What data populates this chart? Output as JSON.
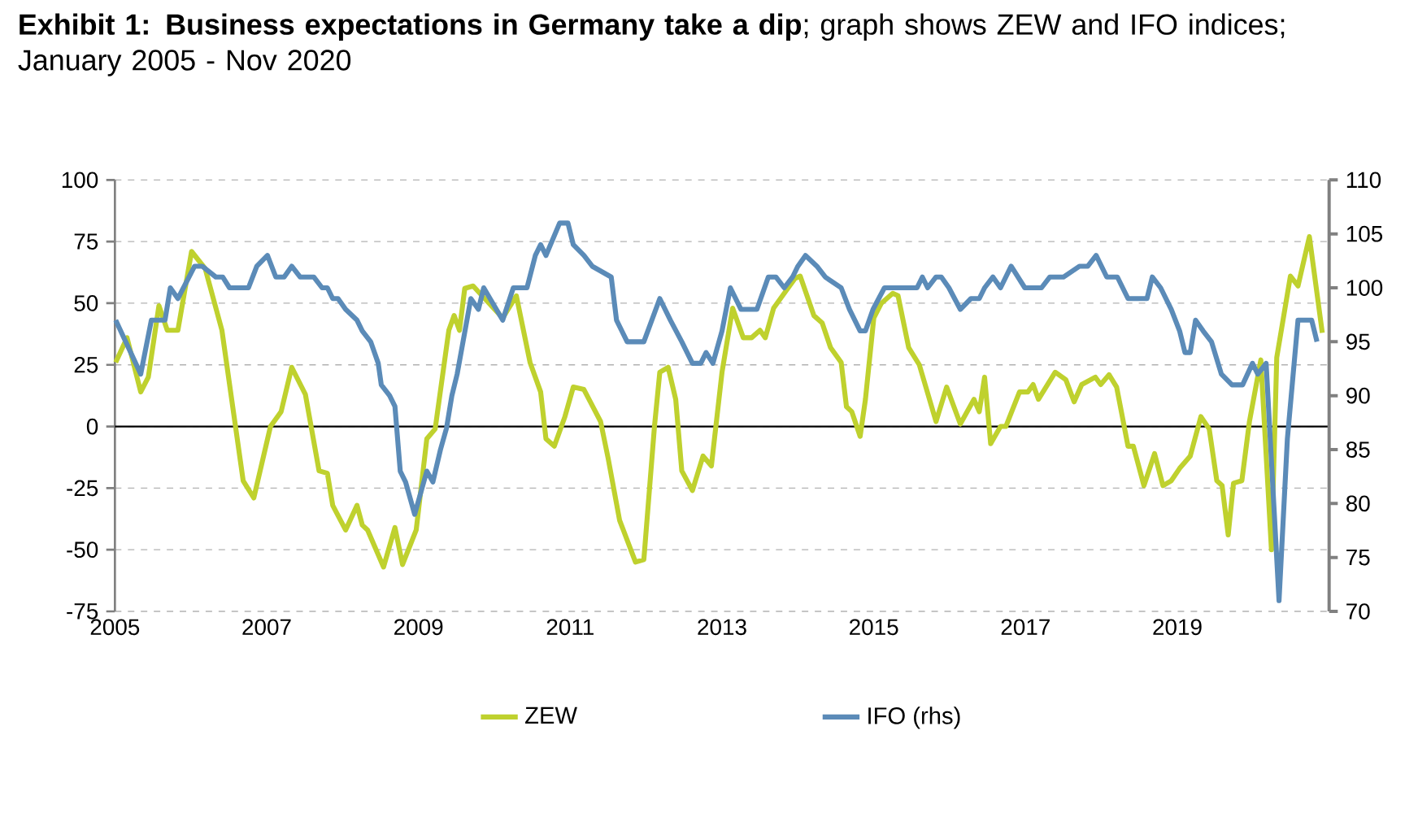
{
  "chart_data": {
    "type": "line",
    "title": "**Exhibit 1: Business expectations in Germany take a dip**; graph shows ZEW and IFO indices; January 2005 - Nov 2020",
    "xlim": [
      2005,
      2021
    ],
    "xticks": [
      2005,
      2007,
      2009,
      2011,
      2013,
      2015,
      2017,
      2019
    ],
    "ylim": [
      -75,
      100
    ],
    "yticks": [
      -75,
      -50,
      -25,
      0,
      25,
      50,
      75,
      100
    ],
    "y2lim": [
      70,
      110
    ],
    "y2ticks": [
      70,
      75,
      80,
      85,
      90,
      95,
      100,
      105,
      110
    ],
    "grid": "y",
    "legend": "bottom",
    "marker": "none",
    "line_style": "solid",
    "series": [
      {
        "name": "ZEW",
        "color": "#bfd12e",
        "x": [
          2005.01,
          2005.16,
          2005.34,
          2005.44,
          2005.58,
          2005.69,
          2005.83,
          2006.01,
          2006.19,
          2006.41,
          2006.69,
          2006.83,
          2007.05,
          2007.19,
          2007.33,
          2007.51,
          2007.69,
          2007.8,
          2007.87,
          2008.04,
          2008.19,
          2008.26,
          2008.33,
          2008.54,
          2008.69,
          2008.79,
          2008.97,
          2009.11,
          2009.22,
          2009.4,
          2009.47,
          2009.54,
          2009.61,
          2009.72,
          2010.11,
          2010.29,
          2010.47,
          2010.61,
          2010.68,
          2010.79,
          2010.93,
          2011.04,
          2011.18,
          2011.4,
          2011.5,
          2011.65,
          2011.86,
          2011.97,
          2012.11,
          2012.18,
          2012.29,
          2012.39,
          2012.47,
          2012.61,
          2012.75,
          2012.86,
          2013.0,
          2013.14,
          2013.28,
          2013.39,
          2013.5,
          2013.57,
          2013.68,
          2013.82,
          2013.96,
          2014.03,
          2014.21,
          2014.32,
          2014.43,
          2014.57,
          2014.64,
          2014.71,
          2014.82,
          2014.89,
          2015.0,
          2015.1,
          2015.25,
          2015.32,
          2015.46,
          2015.6,
          2015.82,
          2015.96,
          2016.14,
          2016.32,
          2016.39,
          2016.46,
          2016.54,
          2016.67,
          2016.74,
          2016.92,
          2017.03,
          2017.1,
          2017.17,
          2017.39,
          2017.53,
          2017.64,
          2017.74,
          2017.92,
          2017.99,
          2018.1,
          2018.2,
          2018.35,
          2018.42,
          2018.56,
          2018.7,
          2018.81,
          2018.92,
          2019.03,
          2019.17,
          2019.31,
          2019.42,
          2019.52,
          2019.59,
          2019.67,
          2019.74,
          2019.85,
          2019.95,
          2020.1,
          2020.24,
          2020.31,
          2020.49,
          2020.59,
          2020.74,
          2020.91
        ],
        "values": [
          26,
          36,
          14,
          20,
          49,
          39,
          39,
          71,
          64,
          39,
          -22,
          -29,
          0,
          6,
          24,
          13,
          -18,
          -19,
          -32,
          -42,
          -32,
          -40,
          -42,
          -57,
          -41,
          -56,
          -42,
          -5,
          -1,
          39,
          45,
          39,
          56,
          57,
          44,
          53,
          26,
          14,
          -5,
          -8,
          4,
          16,
          15,
          2,
          -13,
          -38,
          -55,
          -54,
          0,
          22,
          24,
          11,
          -18,
          -26,
          -12,
          -16,
          22,
          48,
          36,
          36,
          39,
          36,
          48,
          54,
          60,
          61,
          45,
          42,
          32,
          26,
          8,
          6,
          -4,
          11,
          44,
          50,
          54,
          53,
          32,
          25,
          2,
          16,
          1,
          11,
          6,
          20,
          -7,
          0,
          0,
          14,
          14,
          17,
          11,
          22,
          19,
          10,
          17,
          20,
          17,
          21,
          16,
          -8,
          -8,
          -24,
          -11,
          -24,
          -22,
          -17,
          -12,
          4,
          -1,
          -22,
          -24,
          -44,
          -23,
          -22,
          2,
          27,
          -50,
          28,
          61,
          57,
          77,
          38
        ]
      },
      {
        "name": "IFO  (rhs)",
        "color": "#5b8bb8",
        "axis": "y2",
        "x": [
          2005.01,
          2005.34,
          2005.48,
          2005.66,
          2005.73,
          2005.83,
          2006.05,
          2006.15,
          2006.33,
          2006.42,
          2006.51,
          2006.76,
          2006.87,
          2007.01,
          2007.12,
          2007.23,
          2007.33,
          2007.44,
          2007.62,
          2007.73,
          2007.8,
          2007.87,
          2007.94,
          2008.04,
          2008.19,
          2008.26,
          2008.37,
          2008.47,
          2008.51,
          2008.62,
          2008.69,
          2008.76,
          2008.83,
          2008.95,
          2009.11,
          2009.19,
          2009.29,
          2009.37,
          2009.44,
          2009.51,
          2009.69,
          2009.79,
          2009.86,
          2010.11,
          2010.25,
          2010.43,
          2010.54,
          2010.61,
          2010.68,
          2010.86,
          2010.97,
          2011.04,
          2011.18,
          2011.29,
          2011.54,
          2011.61,
          2011.75,
          2011.86,
          2011.97,
          2012.18,
          2012.32,
          2012.47,
          2012.61,
          2012.72,
          2012.79,
          2012.88,
          2013.0,
          2013.11,
          2013.25,
          2013.36,
          2013.46,
          2013.61,
          2013.71,
          2013.82,
          2013.93,
          2014.0,
          2014.1,
          2014.25,
          2014.36,
          2014.57,
          2014.68,
          2014.82,
          2014.89,
          2014.99,
          2015.14,
          2015.32,
          2015.46,
          2015.57,
          2015.64,
          2015.71,
          2015.82,
          2015.89,
          2015.99,
          2016.14,
          2016.28,
          2016.39,
          2016.46,
          2016.57,
          2016.67,
          2016.81,
          2016.99,
          2017.1,
          2017.21,
          2017.32,
          2017.39,
          2017.5,
          2017.71,
          2017.82,
          2017.93,
          2018.07,
          2018.21,
          2018.35,
          2018.46,
          2018.6,
          2018.67,
          2018.78,
          2018.92,
          2019.03,
          2019.1,
          2019.17,
          2019.24,
          2019.34,
          2019.45,
          2019.58,
          2019.72,
          2019.86,
          2019.99,
          2020.06,
          2020.17,
          2020.34,
          2020.45,
          2020.59,
          2020.77,
          2020.84
        ],
        "values": [
          97,
          92,
          97,
          97,
          100,
          99,
          102,
          102,
          101,
          101,
          100,
          100,
          102,
          103,
          101,
          101,
          102,
          101,
          101,
          100,
          100,
          99,
          99,
          98,
          97,
          96,
          95,
          93,
          91,
          90,
          89,
          83,
          82,
          79,
          83,
          82,
          85,
          87,
          90,
          92,
          99,
          98,
          100,
          97,
          100,
          100,
          103,
          104,
          103,
          106,
          106,
          104,
          103,
          102,
          101,
          97,
          95,
          95,
          95,
          99,
          97,
          95,
          93,
          93,
          94,
          93,
          96,
          100,
          98,
          98,
          98,
          101,
          101,
          100,
          101,
          102,
          103,
          102,
          101,
          100,
          98,
          96,
          96,
          98,
          100,
          100,
          100,
          100,
          101,
          100,
          101,
          101,
          100,
          98,
          99,
          99,
          100,
          101,
          100,
          102,
          100,
          100,
          100,
          101,
          101,
          101,
          102,
          102,
          103,
          101,
          101,
          99,
          99,
          99,
          101,
          100,
          98,
          96,
          94,
          94,
          97,
          96,
          95,
          92,
          91,
          91,
          93,
          92,
          93,
          71,
          86,
          97,
          97,
          95
        ]
      }
    ]
  }
}
